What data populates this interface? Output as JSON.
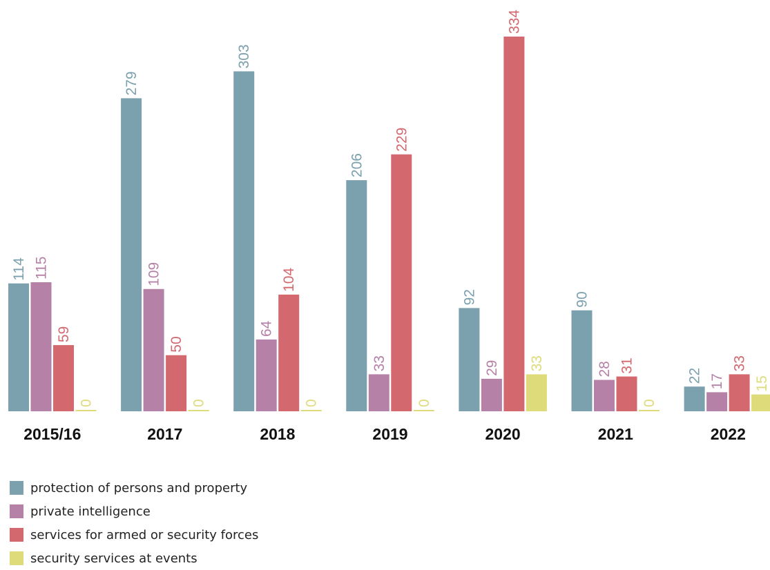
{
  "chart_data": {
    "type": "bar",
    "categories": [
      "2015/16",
      "2017",
      "2018",
      "2019",
      "2020",
      "2021",
      "2022"
    ],
    "series": [
      {
        "name": "protection of persons and property",
        "color": "#7ba0ae",
        "values": [
          114,
          279,
          303,
          206,
          92,
          90,
          22
        ]
      },
      {
        "name": "private intelligence",
        "color": "#b681a7",
        "values": [
          115,
          109,
          64,
          33,
          29,
          28,
          17
        ]
      },
      {
        "name": "services for armed or security forces",
        "color": "#d4686f",
        "values": [
          59,
          50,
          104,
          229,
          334,
          31,
          33
        ]
      },
      {
        "name": "security services at events",
        "color": "#dedb7a",
        "values": [
          0,
          0,
          0,
          0,
          33,
          0,
          15
        ]
      }
    ],
    "ylim": [
      0,
      334
    ],
    "grid": false,
    "legend_position": "bottom-left",
    "data_labels": "rotated above bars"
  }
}
